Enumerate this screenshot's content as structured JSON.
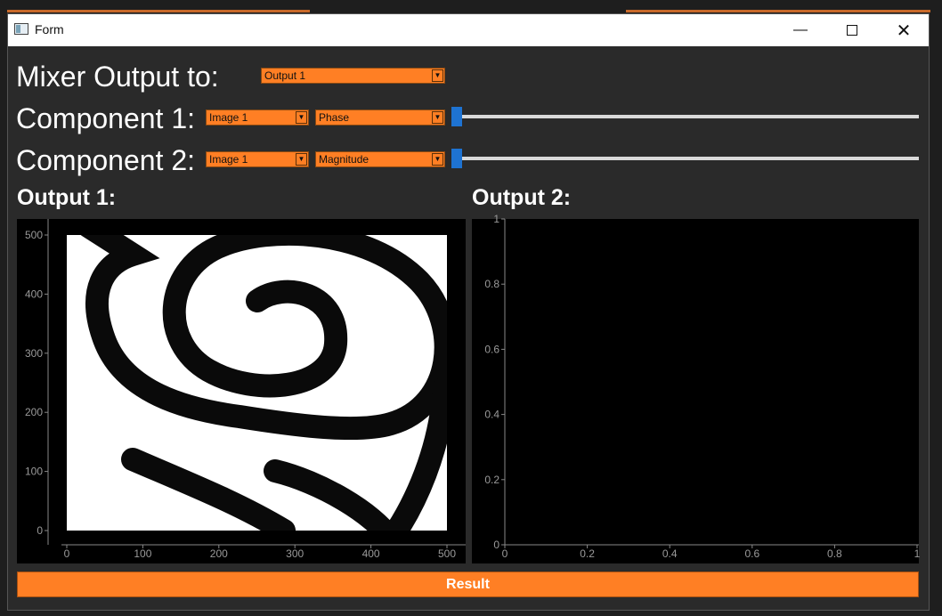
{
  "window": {
    "title": "Form"
  },
  "mixer": {
    "label": "Mixer Output to:",
    "selected": "Output 1"
  },
  "component1": {
    "label": "Component 1:",
    "image": "Image 1",
    "mode": "Phase",
    "slider_fraction": 0
  },
  "component2": {
    "label": "Component 2:",
    "image": "Image 1",
    "mode": "Magnitude",
    "slider_fraction": 0
  },
  "outputs": {
    "output1_title": "Output 1:",
    "output2_title": "Output 2:"
  },
  "result_button": {
    "label": "Result"
  },
  "plot1": {
    "x_ticks": [
      "0",
      "100",
      "200",
      "300",
      "400",
      "500"
    ],
    "y_ticks": [
      "0",
      "100",
      "200",
      "300",
      "400",
      "500"
    ],
    "x_range": [
      0,
      500
    ],
    "y_range": [
      0,
      500
    ],
    "content": "white image with black spiral"
  },
  "plot2": {
    "x_ticks": [
      "0",
      "0.2",
      "0.4",
      "0.6",
      "0.8",
      "1"
    ],
    "y_ticks": [
      "0",
      "0.2",
      "0.4",
      "0.6",
      "0.8",
      "1"
    ],
    "x_range": [
      0,
      1
    ],
    "y_range": [
      0,
      1
    ]
  },
  "colors": {
    "accent": "#ff7f24",
    "slider_handle": "#1e73d2",
    "background": "#2a2a2a",
    "plot_background": "#000000"
  },
  "icons": {
    "app": "form-window-icon",
    "minimize": "minimize-icon",
    "maximize": "maximize-icon",
    "close": "close-icon",
    "dropdown": "chevron-down-icon"
  }
}
